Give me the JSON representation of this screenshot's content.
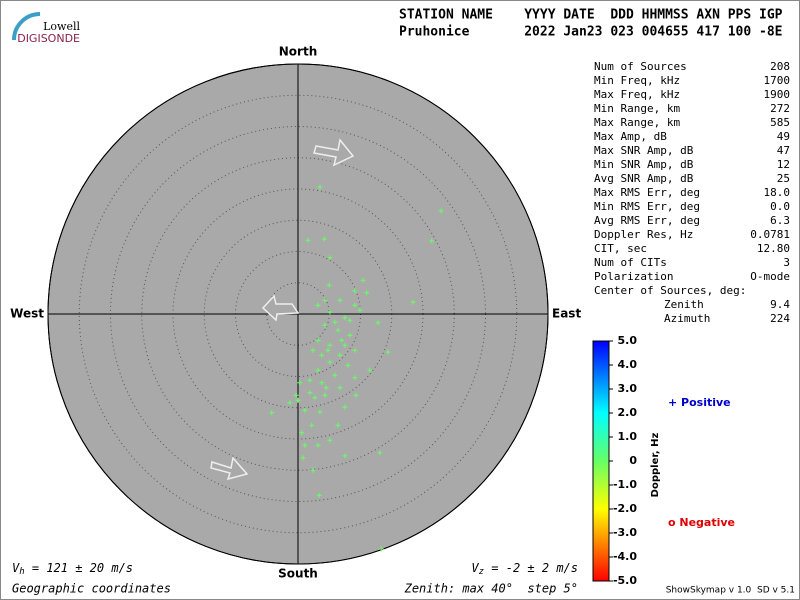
{
  "logo": {
    "line1": "Lowell",
    "line2": "DIGISONDE"
  },
  "header": {
    "labels": "STATION NAME    YYYY DATE  DDD HHMMSS AXN PPS IGP",
    "values": "Pruhonice       2022 Jan23 023 004655 417 100 -8E"
  },
  "stats": {
    "rows": [
      [
        "Num of Sources",
        "208"
      ],
      [
        "Min Freq, kHz",
        "1700"
      ],
      [
        "Max Freq, kHz",
        "1900"
      ],
      [
        "Min Range, km",
        "272"
      ],
      [
        "Max Range, km",
        "585"
      ],
      [
        "Max Amp, dB",
        "49"
      ],
      [
        "Max SNR Amp, dB",
        "47"
      ],
      [
        "Min SNR Amp, dB",
        "12"
      ],
      [
        "Avg SNR Amp, dB",
        "25"
      ],
      [
        "Max RMS Err, deg",
        "18.0"
      ],
      [
        "Min RMS Err, deg",
        "0.0"
      ],
      [
        "Avg RMS Err, deg",
        "6.3"
      ],
      [
        "Doppler Res, Hz",
        "0.0781"
      ],
      [
        "CIT, sec",
        "12.80"
      ],
      [
        "Num of CITs",
        "3"
      ],
      [
        "Polarization",
        "O-mode"
      ]
    ],
    "center_title": "Center of Sources, deg:",
    "center_rows": [
      [
        "Zenith",
        "9.4"
      ],
      [
        "Azimuth",
        "224"
      ]
    ]
  },
  "chart_data": {
    "type": "scatter",
    "north": "North",
    "south": "South",
    "west": "West",
    "east": "East",
    "xlim": [
      -40,
      40
    ],
    "ylim": [
      -40,
      40
    ],
    "rticks": [
      5,
      10,
      15,
      20,
      25,
      30,
      35,
      40
    ],
    "color": "#66ff66",
    "x": [
      3.5,
      22.9,
      21.4,
      1.6,
      4.2,
      5.1,
      10.4,
      9.1,
      5.0,
      18.4,
      4.3,
      3.2,
      6.7,
      9.1,
      9.9,
      5.1,
      7.5,
      12.8,
      4.3,
      6.4,
      8.3,
      3.2,
      5.1,
      7.5,
      9.1,
      2.4,
      3.8,
      6.7,
      14.4,
      5.1,
      8.0,
      11.5,
      3.2,
      5.9,
      9.1,
      0.3,
      3.8,
      6.7,
      1.9,
      -1.3,
      0,
      2.7,
      4.3,
      9.3,
      7.5,
      1.1,
      3.5,
      -4.2,
      6.4,
      2.2,
      0.6,
      5.1,
      3.2,
      1.1,
      13.1,
      7.5,
      0.8,
      2.4,
      3.4,
      13.3,
      8.3,
      5.9,
      7.0,
      4.8,
      1.9,
      4.5,
      -0.3,
      11.0
    ],
    "values": [
      20.3,
      16.5,
      11.7,
      11.8,
      12.0,
      9.0,
      5.4,
      3.7,
      4.6,
      1.9,
      2.2,
      1.4,
      2.2,
      1.4,
      0.6,
      0.3,
      -0.6,
      -1.4,
      -1.8,
      -2.6,
      -3.4,
      -4.2,
      -5.0,
      -5.0,
      -5.8,
      -5.8,
      -6.6,
      -6.6,
      -6.1,
      -7.7,
      -8.2,
      -9.0,
      -9.0,
      -9.8,
      -10.2,
      -11.0,
      -11.0,
      -11.8,
      -12.6,
      -14.2,
      -13.8,
      -13.4,
      -13.0,
      -13.0,
      -14.9,
      -15.4,
      -15.7,
      -15.8,
      -17.8,
      -17.8,
      -19.0,
      -20.2,
      -21.0,
      -21.0,
      -22.2,
      -22.7,
      -23.0,
      -25.0,
      -29.0,
      -37.6,
      -1.0,
      -1.3,
      -4.2,
      -5.8,
      -10.6,
      -11.8,
      -13.0,
      3.4
    ],
    "colorbar": {
      "label": "Doppler, Hz",
      "lim": [
        -5,
        5
      ],
      "ticks": [
        {
          "value": 5,
          "label": "5.0"
        },
        {
          "value": 4,
          "label": "4.0"
        },
        {
          "value": 3,
          "label": "3.0"
        },
        {
          "value": 2,
          "label": "2.0"
        },
        {
          "value": 1,
          "label": "1.0"
        },
        0,
        {
          "value": -1,
          "label": "-1.0"
        },
        {
          "value": -2,
          "label": "-2.0"
        },
        {
          "value": -3,
          "label": "-3.0"
        },
        {
          "value": -4,
          "label": "-4.0"
        },
        {
          "value": -5,
          "label": "-5.0"
        }
      ]
    },
    "legend": {
      "positive": "+ Positive",
      "positive_color": "#0000cc",
      "negative": "o Negative",
      "negative_color": "#dd0000"
    },
    "vh": {
      "symbol": "V",
      "sub": "h",
      "text": " = 121 ± 20 m/s"
    },
    "vz": {
      "symbol": "V",
      "sub": "z",
      "text": " = -2 ± 2 m/s"
    },
    "coords": "Geographic coordinates",
    "zenith_note": "Zenith: max 40°  step 5°",
    "version": "ShowSkymap v 1.0  SD v 5.1"
  }
}
